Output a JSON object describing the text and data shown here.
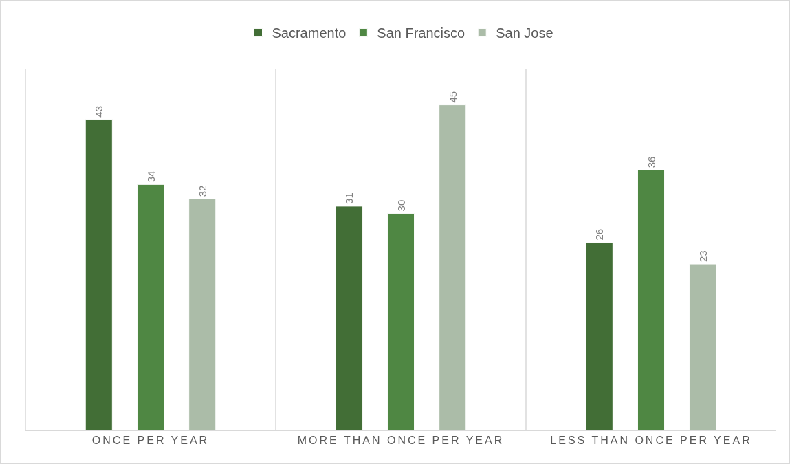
{
  "chart_data": {
    "type": "bar",
    "categories": [
      "ONCE PER YEAR",
      "MORE THAN ONCE PER YEAR",
      "LESS THAN ONCE PER YEAR"
    ],
    "series": [
      {
        "name": "Sacramento",
        "color": "#426e36",
        "values": [
          43,
          31,
          26
        ]
      },
      {
        "name": "San Francisco",
        "color": "#4f8743",
        "values": [
          34,
          30,
          36
        ]
      },
      {
        "name": "San Jose",
        "color": "#abbca8",
        "values": [
          32,
          45,
          23
        ]
      }
    ],
    "ylim": [
      0,
      50
    ],
    "data_labels": true,
    "grid": "x",
    "legend": "top",
    "tick_labels": "x"
  }
}
